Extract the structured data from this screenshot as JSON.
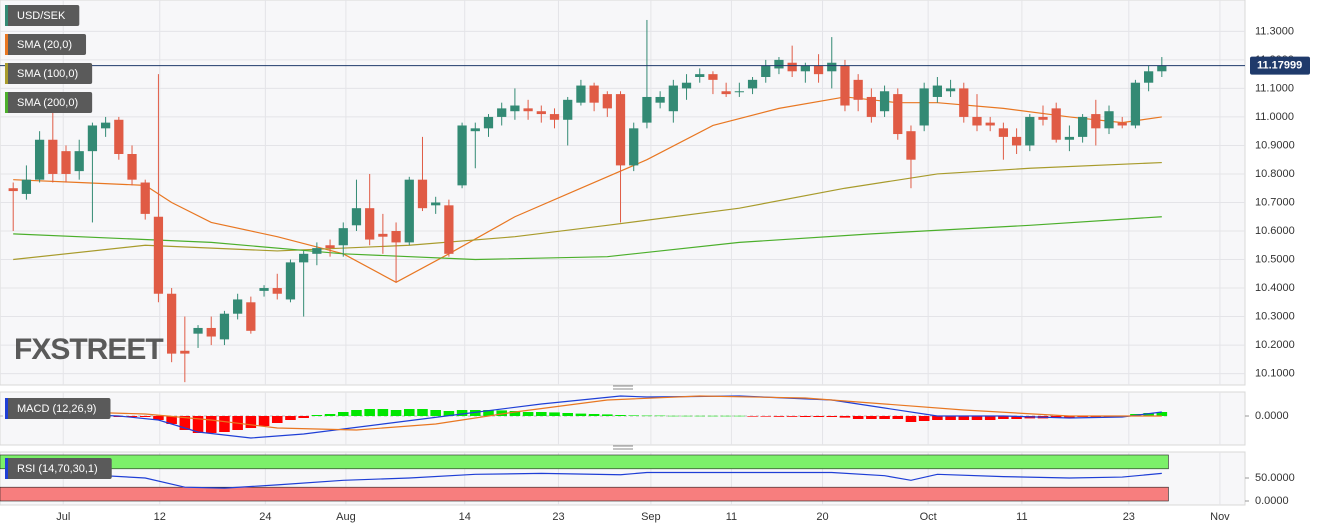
{
  "chart_data": [
    {
      "type": "candlestick",
      "name": "USD/SEK",
      "up_color": "#338a74",
      "down_color": "#e05b45",
      "open": [
        10.75,
        10.73,
        10.78,
        10.92,
        10.88,
        10.81,
        10.88,
        10.96,
        10.99,
        10.87,
        10.77,
        10.65,
        10.38,
        10.18,
        10.24,
        10.26,
        10.22,
        10.31,
        10.35,
        10.39,
        10.4,
        10.36,
        10.49,
        10.52,
        10.55,
        10.55,
        10.62,
        10.68,
        10.59,
        10.6,
        10.56,
        10.78,
        10.69,
        10.69,
        10.76,
        10.95,
        10.96,
        11.0,
        11.02,
        11.03,
        11.02,
        11.01,
        10.99,
        11.05,
        11.11,
        11.08,
        11.08,
        10.83,
        10.98,
        11.05,
        11.02,
        11.1,
        11.14,
        11.15,
        11.09,
        11.09,
        11.1,
        11.14,
        11.17,
        11.19,
        11.16,
        11.18,
        11.16,
        11.18,
        11.13,
        11.07,
        11.02,
        11.08,
        10.95,
        10.97,
        11.07,
        11.09,
        11.1,
        11.0,
        10.98,
        10.96,
        10.93,
        10.9,
        11.0,
        11.03,
        10.92,
        10.93,
        11.01,
        10.96,
        10.98,
        10.97,
        11.12,
        11.16
      ],
      "high": [
        10.77,
        10.83,
        10.95,
        11.05,
        10.9,
        10.92,
        10.98,
        11.0,
        11.0,
        10.9,
        10.78,
        11.15,
        10.4,
        10.3,
        10.27,
        10.3,
        10.32,
        10.38,
        10.37,
        10.41,
        10.45,
        10.5,
        10.53,
        10.56,
        10.57,
        10.63,
        10.78,
        10.8,
        10.66,
        10.63,
        10.79,
        10.93,
        10.72,
        10.71,
        10.98,
        10.98,
        11.01,
        11.05,
        11.1,
        11.06,
        11.04,
        11.03,
        11.07,
        11.13,
        11.12,
        11.09,
        11.09,
        10.98,
        11.34,
        11.09,
        11.13,
        11.15,
        11.17,
        11.16,
        11.12,
        11.12,
        11.14,
        11.2,
        11.21,
        11.25,
        11.19,
        11.22,
        11.28,
        11.2,
        11.15,
        11.1,
        11.11,
        11.1,
        10.97,
        11.12,
        11.14,
        11.13,
        11.12,
        11.08,
        11.0,
        10.98,
        10.96,
        11.01,
        11.04,
        11.05,
        10.97,
        11.01,
        11.06,
        11.04,
        11.0,
        11.13,
        11.18,
        11.21
      ],
      "low": [
        10.6,
        10.71,
        10.77,
        10.77,
        10.77,
        10.78,
        10.63,
        10.93,
        10.85,
        10.76,
        10.64,
        10.35,
        10.14,
        10.07,
        10.19,
        10.2,
        10.2,
        10.29,
        10.24,
        10.37,
        10.36,
        10.35,
        10.3,
        10.48,
        10.51,
        10.51,
        10.6,
        10.55,
        10.52,
        10.42,
        10.55,
        10.67,
        10.66,
        10.51,
        10.75,
        10.82,
        10.93,
        10.97,
        10.99,
        10.99,
        10.98,
        10.96,
        10.9,
        11.04,
        11.02,
        11.0,
        10.63,
        10.81,
        10.96,
        11.03,
        10.98,
        11.06,
        11.12,
        11.08,
        11.07,
        11.07,
        11.08,
        11.12,
        11.15,
        11.14,
        11.12,
        11.12,
        11.1,
        11.02,
        11.02,
        10.98,
        11.0,
        10.92,
        10.75,
        10.95,
        11.05,
        11.07,
        10.98,
        10.95,
        10.95,
        10.85,
        10.87,
        10.88,
        10.97,
        10.91,
        10.88,
        10.91,
        10.9,
        10.94,
        10.96,
        10.96,
        11.09,
        11.14
      ],
      "close": [
        10.74,
        10.78,
        10.92,
        10.8,
        10.8,
        10.88,
        10.97,
        10.98,
        10.87,
        10.78,
        10.66,
        10.38,
        10.17,
        10.17,
        10.26,
        10.23,
        10.31,
        10.36,
        10.25,
        10.4,
        10.38,
        10.49,
        10.52,
        10.54,
        10.54,
        10.61,
        10.68,
        10.57,
        10.58,
        10.56,
        10.78,
        10.68,
        10.7,
        10.52,
        10.97,
        10.96,
        11.0,
        11.03,
        11.04,
        11.02,
        11.01,
        10.99,
        11.06,
        11.11,
        11.05,
        11.03,
        10.83,
        10.96,
        11.07,
        11.07,
        11.11,
        11.12,
        11.15,
        11.13,
        11.08,
        11.09,
        11.13,
        11.18,
        11.2,
        11.16,
        11.18,
        11.15,
        11.19,
        11.04,
        11.06,
        11.0,
        11.09,
        10.94,
        10.85,
        11.1,
        11.11,
        11.1,
        11.0,
        10.97,
        10.97,
        10.93,
        10.9,
        11.0,
        10.99,
        10.92,
        10.93,
        11.0,
        10.96,
        11.02,
        10.97,
        11.12,
        11.16,
        11.18
      ],
      "overlays": [
        {
          "name": "SMA (20,0)",
          "color": "#e87722",
          "x": [
            0,
            5,
            10,
            12,
            15,
            20,
            25,
            29,
            33,
            38,
            43,
            48,
            53,
            58,
            63,
            67,
            70,
            75,
            80,
            84,
            87
          ],
          "values": [
            10.78,
            10.77,
            10.76,
            10.7,
            10.63,
            10.58,
            10.52,
            10.42,
            10.52,
            10.65,
            10.75,
            10.85,
            10.97,
            11.03,
            11.07,
            11.05,
            11.05,
            11.03,
            11.0,
            10.98,
            11.0
          ]
        },
        {
          "name": "SMA (100,0)",
          "color": "#a89b2c",
          "x": [
            0,
            10,
            20,
            30,
            38,
            45,
            55,
            63,
            70,
            77,
            87
          ],
          "values": [
            10.5,
            10.55,
            10.53,
            10.55,
            10.58,
            10.62,
            10.68,
            10.75,
            10.8,
            10.82,
            10.84
          ]
        },
        {
          "name": "SMA (200,0)",
          "color": "#4caf2c",
          "x": [
            0,
            15,
            25,
            35,
            45,
            55,
            65,
            77,
            87
          ],
          "values": [
            10.59,
            10.56,
            10.52,
            10.5,
            10.51,
            10.56,
            10.59,
            10.62,
            10.65
          ]
        }
      ],
      "last_price": 11.17999,
      "last_price_color": "#1f3a6b",
      "watermark": "FXSTREET",
      "xlim": [
        -1,
        93.3
      ],
      "xticks": [
        {
          "value": 3.79,
          "label": "Jul"
        },
        {
          "value": 11.1,
          "label": "12"
        },
        {
          "value": 19.1,
          "label": "24"
        },
        {
          "value": 25.2,
          "label": "Aug"
        },
        {
          "value": 34.2,
          "label": "14"
        },
        {
          "value": 41.3,
          "label": "23"
        },
        {
          "value": 48.3,
          "label": "Sep"
        },
        {
          "value": 54.4,
          "label": "11"
        },
        {
          "value": 61.3,
          "label": "20"
        },
        {
          "value": 69.3,
          "label": "Oct"
        },
        {
          "value": 76.4,
          "label": "11"
        },
        {
          "value": 84.5,
          "label": "23"
        },
        {
          "value": 91.4,
          "label": "Nov"
        }
      ],
      "ylim": [
        10.06,
        11.41
      ],
      "yticks": [
        {
          "value": 10.1,
          "label": "10.1000"
        },
        {
          "value": 10.2,
          "label": "10.2000"
        },
        {
          "value": 10.3,
          "label": "10.3000"
        },
        {
          "value": 10.4,
          "label": "10.4000"
        },
        {
          "value": 10.5,
          "label": "10.5000"
        },
        {
          "value": 10.6,
          "label": "10.6000"
        },
        {
          "value": 10.7,
          "label": "10.7000"
        },
        {
          "value": 10.8,
          "label": "10.8000"
        },
        {
          "value": 10.9,
          "label": "10.9000"
        },
        {
          "value": 11.0,
          "label": "11.0000"
        },
        {
          "value": 11.1,
          "label": "11.1000"
        },
        {
          "value": 11.2,
          "label": "11.2000"
        },
        {
          "value": 11.3,
          "label": "11.3000"
        }
      ],
      "grid": true
    },
    {
      "type": "macd",
      "name": "MACD (12,26,9)",
      "histogram": {
        "up_color": "#00e600",
        "down_color": "#ff0000",
        "values": [
          0,
          0,
          0,
          0,
          0,
          0,
          0,
          0,
          -0.005,
          -0.005,
          -0.005,
          -0.02,
          -0.04,
          -0.07,
          -0.085,
          -0.085,
          -0.08,
          -0.07,
          -0.06,
          -0.05,
          -0.035,
          -0.02,
          -0.01,
          0.005,
          0.01,
          0.02,
          0.03,
          0.035,
          0.035,
          0.03,
          0.035,
          0.035,
          0.03,
          0.025,
          0.03,
          0.03,
          0.03,
          0.028,
          0.025,
          0.02,
          0.02,
          0.018,
          0.015,
          0.012,
          0.01,
          0.008,
          0.005,
          0.003,
          0.002,
          0.002,
          0.001,
          0.001,
          0.001,
          0.001,
          0.001,
          0.001,
          -0.003,
          -0.003,
          -0.004,
          -0.004,
          -0.005,
          -0.005,
          -0.005,
          -0.008,
          -0.015,
          -0.015,
          -0.015,
          -0.015,
          -0.03,
          -0.025,
          -0.02,
          -0.02,
          -0.02,
          -0.02,
          -0.02,
          -0.015,
          -0.015,
          -0.012,
          -0.012,
          -0.01,
          -0.01,
          -0.005,
          -0.005,
          -0.005,
          -0.005,
          0.01,
          0.015,
          0.02
        ]
      },
      "series": [
        {
          "color": "#1f3fd6",
          "x": [
            0,
            8,
            11,
            14,
            18,
            22,
            28,
            34,
            40,
            46,
            48,
            55,
            62,
            66,
            70,
            75,
            80,
            84,
            87
          ],
          "values": [
            0.02,
            0.0,
            -0.02,
            -0.08,
            -0.11,
            -0.09,
            -0.04,
            0.01,
            0.06,
            0.1,
            0.095,
            0.1,
            0.08,
            0.04,
            0.0,
            0.0,
            -0.01,
            -0.005,
            0.02
          ]
        },
        {
          "color": "#e87722",
          "x": [
            0,
            10,
            15,
            20,
            26,
            32,
            38,
            45,
            52,
            60,
            66,
            72,
            80,
            87
          ],
          "values": [
            0.03,
            0.01,
            -0.02,
            -0.06,
            -0.07,
            -0.04,
            0.02,
            0.08,
            0.1,
            0.09,
            0.06,
            0.03,
            0.0,
            0.0
          ]
        }
      ],
      "ylim": [
        -0.145,
        0.12
      ],
      "yticks": [
        {
          "value": 0,
          "label": "0.0000"
        }
      ]
    },
    {
      "type": "rsi",
      "name": "RSI (14,70,30,1)",
      "bands": [
        {
          "from": 70,
          "to": 100,
          "color": "#7cf06a"
        },
        {
          "from": 0,
          "to": 30,
          "color": "#f77e7e"
        }
      ],
      "series": [
        {
          "color": "#1f3fd6",
          "x": [
            0,
            5,
            10,
            13,
            16,
            20,
            25,
            30,
            35,
            40,
            46,
            48,
            55,
            62,
            66,
            68,
            70,
            75,
            80,
            84,
            87
          ],
          "values": [
            57,
            58,
            50,
            30,
            28,
            35,
            45,
            50,
            58,
            60,
            57,
            62,
            62,
            62,
            55,
            45,
            58,
            53,
            50,
            52,
            60
          ]
        }
      ],
      "ylim": [
        -8.7,
        106.5
      ],
      "yticks": [
        {
          "value": 50,
          "label": "50.0000"
        },
        {
          "value": 0,
          "label": "0.0000"
        }
      ]
    }
  ]
}
